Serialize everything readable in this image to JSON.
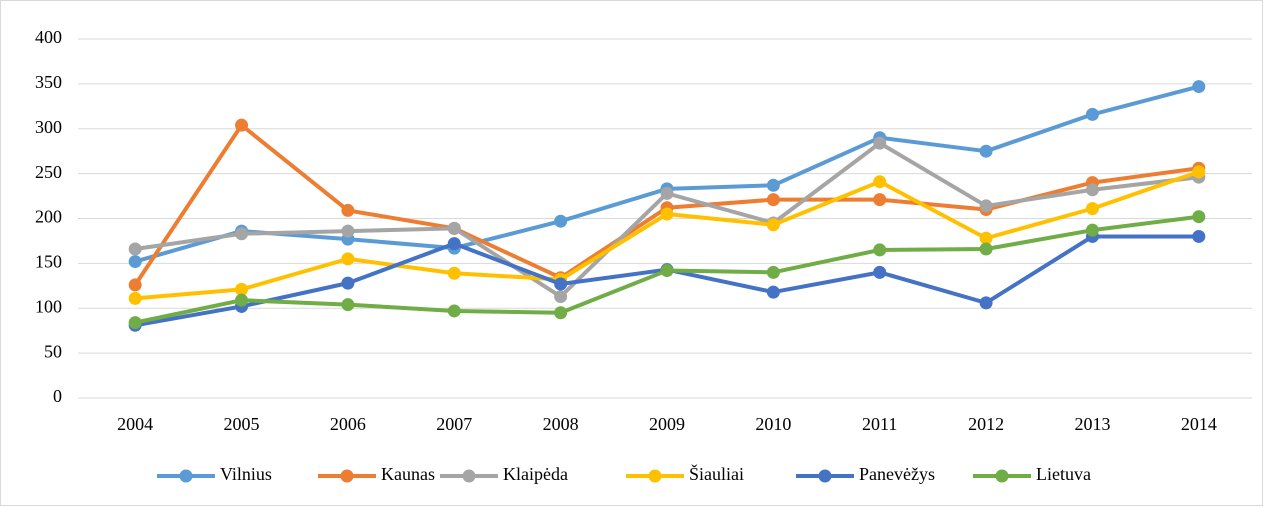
{
  "chart_data": {
    "type": "line",
    "categories": [
      "2004",
      "2005",
      "2006",
      "2007",
      "2008",
      "2009",
      "2010",
      "2011",
      "2012",
      "2013",
      "2014"
    ],
    "series": [
      {
        "name": "Vilnius",
        "color": "#5b9bd5",
        "values": [
          152,
          186,
          177,
          167,
          197,
          233,
          237,
          290,
          275,
          316,
          347
        ]
      },
      {
        "name": "Kaunas",
        "color": "#ed7d31",
        "values": [
          126,
          304,
          209,
          189,
          134,
          212,
          221,
          221,
          210,
          240,
          256
        ]
      },
      {
        "name": "Klaipėda",
        "color": "#a5a5a5",
        "values": [
          166,
          183,
          186,
          189,
          113,
          228,
          195,
          284,
          214,
          232,
          246
        ]
      },
      {
        "name": "Šiauliai",
        "color": "#ffc000",
        "values": [
          111,
          121,
          155,
          139,
          132,
          205,
          193,
          241,
          178,
          211,
          252
        ]
      },
      {
        "name": "Panevėžys",
        "color": "#4472c4",
        "values": [
          81,
          102,
          128,
          172,
          127,
          143,
          118,
          140,
          106,
          180,
          180
        ]
      },
      {
        "name": "Lietuva",
        "color": "#70ad47",
        "values": [
          84,
          109,
          104,
          97,
          95,
          142,
          140,
          165,
          166,
          187,
          202
        ]
      }
    ],
    "ylim": [
      0,
      400
    ],
    "yticks": [
      0,
      50,
      100,
      150,
      200,
      250,
      300,
      350,
      400
    ],
    "grid": true,
    "legend": "bottom"
  }
}
